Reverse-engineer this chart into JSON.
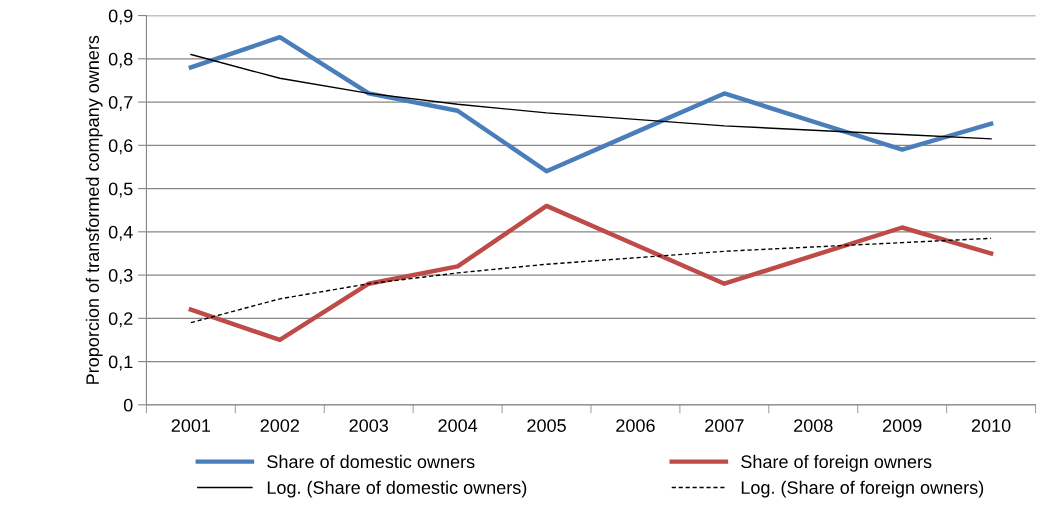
{
  "chart_data": {
    "type": "line",
    "ylabel": "Proporcion of transformed company owners",
    "categories": [
      "2001",
      "2002",
      "2003",
      "2004",
      "2005",
      "2006",
      "2007",
      "2008",
      "2009",
      "2010"
    ],
    "series": [
      {
        "name": "Share of domestic owners",
        "color": "#4a7ebb",
        "line_style": "solid",
        "values": [
          0.78,
          0.85,
          0.72,
          0.68,
          0.54,
          0.63,
          0.72,
          0.655,
          0.59,
          0.65
        ]
      },
      {
        "name": "Share of foreign owners",
        "color": "#be4b48",
        "line_style": "solid",
        "values": [
          0.22,
          0.15,
          0.28,
          0.32,
          0.46,
          0.37,
          0.28,
          0.345,
          0.41,
          0.35
        ]
      },
      {
        "name": "Log. (Share of domestic owners)",
        "color": "#000000",
        "line_style": "solid",
        "values": [
          0.81,
          0.755,
          0.72,
          0.695,
          0.675,
          0.66,
          0.645,
          0.635,
          0.625,
          0.615
        ]
      },
      {
        "name": "Log. (Share of foreign owners)",
        "color": "#000000",
        "line_style": "dashed",
        "values": [
          0.19,
          0.245,
          0.28,
          0.305,
          0.325,
          0.34,
          0.355,
          0.365,
          0.375,
          0.385
        ]
      }
    ],
    "ylim": [
      0,
      0.9
    ],
    "yticks": [
      0,
      {
        "value": 0.1,
        "label": "0,1"
      },
      {
        "value": 0.2,
        "label": "0,2"
      },
      {
        "value": 0.3,
        "label": "0,3"
      },
      {
        "value": 0.4,
        "label": "0,4"
      },
      {
        "value": 0.5,
        "label": "0,5"
      },
      {
        "value": 0.6,
        "label": "0,6"
      },
      {
        "value": 0.7,
        "label": "0,7"
      },
      {
        "value": 0.8,
        "label": "0,8"
      },
      {
        "value": 0.9,
        "label": "0,9"
      }
    ],
    "grid": "y",
    "legend": "bottom",
    "marker": "none"
  }
}
